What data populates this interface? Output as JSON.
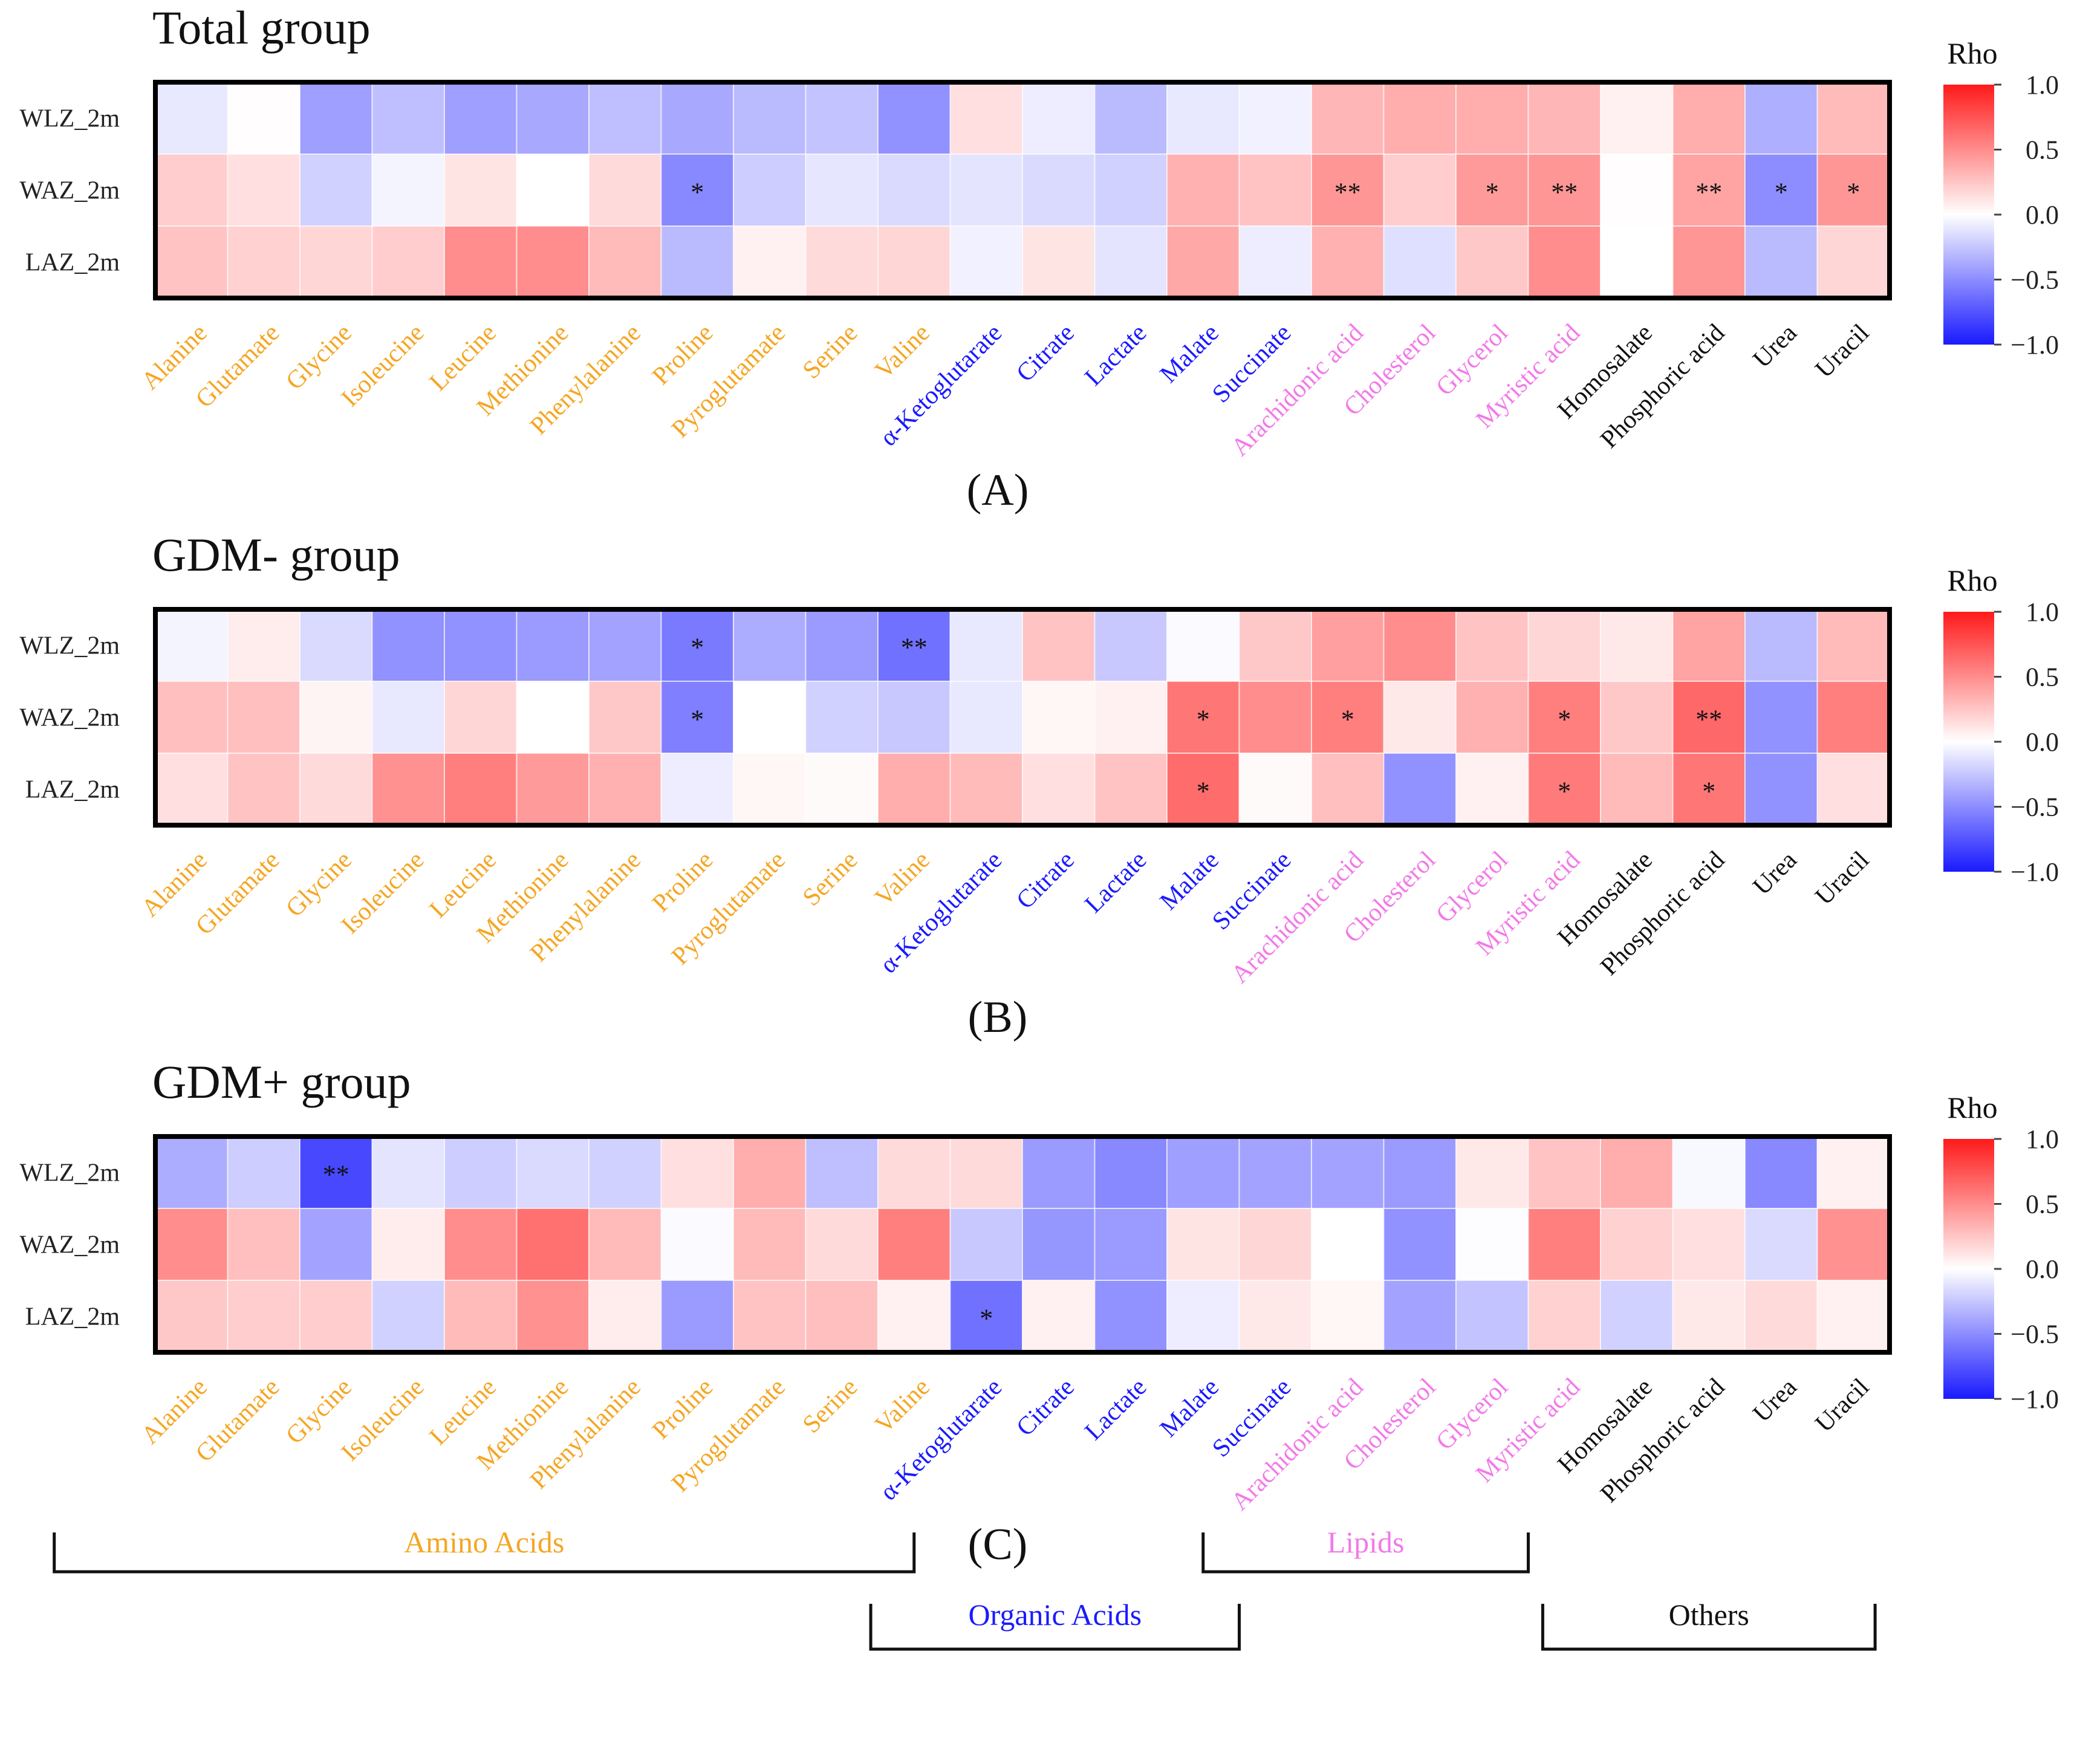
{
  "colors": {
    "amino": "#f5a623",
    "organic": "#1a1aff",
    "lipid": "#f27ae8",
    "other": "#111111",
    "pos": "#ff1a1a",
    "neg": "#1a1aff",
    "mid": "#ffffff"
  },
  "legend": {
    "title": "Rho",
    "ticks": [
      "1.0",
      "0.5",
      "0.0",
      "−0.5",
      "−1.0"
    ]
  },
  "chart_data": [
    {
      "type": "heatmap",
      "title": "Total group",
      "caption": "(A)",
      "rows": [
        "WLZ_2m",
        "WAZ_2m",
        "LAZ_2m"
      ],
      "columns": [
        "Alanine",
        "Glutamate",
        "Glycine",
        "Isoleucine",
        "Leucine",
        "Methionine",
        "Phenylalanine",
        "Proline",
        "Pyroglutamate",
        "Serine",
        "Valine",
        "α-Ketoglutarate",
        "Citrate",
        "Lactate",
        "Malate",
        "Succinate",
        "Arachidonic acid",
        "Cholesterol",
        "Glycerol",
        "Myristic acid",
        "Homosalate",
        "Phosphoric acid",
        "Urea",
        "Uracil"
      ],
      "column_class": [
        "amino",
        "amino",
        "amino",
        "amino",
        "amino",
        "amino",
        "amino",
        "amino",
        "amino",
        "amino",
        "amino",
        "organic",
        "organic",
        "organic",
        "organic",
        "organic",
        "lipid",
        "lipid",
        "lipid",
        "lipid",
        "other",
        "other",
        "other",
        "other"
      ],
      "values": [
        [
          -0.1,
          0.01,
          -0.42,
          -0.28,
          -0.42,
          -0.38,
          -0.28,
          -0.38,
          -0.3,
          -0.26,
          -0.48,
          0.14,
          -0.08,
          -0.3,
          -0.1,
          -0.06,
          0.32,
          0.36,
          0.36,
          0.32,
          0.06,
          0.36,
          -0.35,
          0.3
        ],
        [
          0.22,
          0.14,
          -0.2,
          -0.05,
          0.12,
          0.0,
          0.16,
          -0.52,
          -0.22,
          -0.11,
          -0.16,
          -0.12,
          -0.16,
          -0.2,
          0.34,
          0.26,
          0.46,
          0.22,
          0.44,
          0.46,
          0.01,
          0.4,
          -0.5,
          0.46
        ],
        [
          0.26,
          0.2,
          0.18,
          0.22,
          0.5,
          0.5,
          0.3,
          -0.3,
          0.06,
          0.16,
          0.18,
          -0.06,
          0.12,
          -0.12,
          0.38,
          -0.08,
          0.34,
          -0.14,
          0.24,
          0.5,
          0.0,
          0.46,
          -0.3,
          0.18
        ]
      ],
      "significance": [
        [
          "",
          "",
          "",
          "",
          "",
          "",
          "",
          "",
          "",
          "",
          "",
          "",
          "",
          "",
          "",
          "",
          "",
          "",
          "",
          "",
          "",
          "",
          "",
          ""
        ],
        [
          "",
          "",
          "",
          "",
          "",
          "",
          "",
          "*",
          "",
          "",
          "",
          "",
          "",
          "",
          "",
          "",
          "**",
          "",
          "*",
          "**",
          "",
          "**",
          "*",
          "*"
        ],
        [
          "",
          "",
          "",
          "",
          "",
          "",
          "",
          "",
          "",
          "",
          "",
          "",
          "",
          "",
          "",
          "",
          "",
          "",
          "",
          "",
          "",
          "",
          "",
          ""
        ]
      ],
      "value_range": [
        -1.0,
        1.0
      ]
    },
    {
      "type": "heatmap",
      "title": "GDM- group",
      "caption": "(B)",
      "rows": [
        "WLZ_2m",
        "WAZ_2m",
        "LAZ_2m"
      ],
      "columns": [
        "Alanine",
        "Glutamate",
        "Glycine",
        "Isoleucine",
        "Leucine",
        "Methionine",
        "Phenylalanine",
        "Proline",
        "Pyroglutamate",
        "Serine",
        "Valine",
        "α-Ketoglutarate",
        "Citrate",
        "Lactate",
        "Malate",
        "Succinate",
        "Arachidonic acid",
        "Cholesterol",
        "Glycerol",
        "Myristic acid",
        "Homosalate",
        "Phosphoric acid",
        "Urea",
        "Uracil"
      ],
      "column_class": [
        "amino",
        "amino",
        "amino",
        "amino",
        "amino",
        "amino",
        "amino",
        "amino",
        "amino",
        "amino",
        "amino",
        "organic",
        "organic",
        "organic",
        "organic",
        "organic",
        "lipid",
        "lipid",
        "lipid",
        "lipid",
        "other",
        "other",
        "other",
        "other"
      ],
      "values": [
        [
          -0.05,
          0.08,
          -0.16,
          -0.48,
          -0.48,
          -0.44,
          -0.4,
          -0.58,
          -0.36,
          -0.44,
          -0.62,
          -0.1,
          0.26,
          -0.24,
          -0.02,
          0.24,
          0.42,
          0.5,
          0.26,
          0.18,
          0.1,
          0.4,
          -0.3,
          0.3
        ],
        [
          0.28,
          0.28,
          0.05,
          -0.1,
          0.18,
          0.0,
          0.24,
          -0.56,
          0.0,
          -0.2,
          -0.24,
          -0.1,
          0.04,
          0.06,
          0.6,
          0.5,
          0.56,
          0.1,
          0.34,
          0.56,
          0.24,
          0.66,
          -0.48,
          0.56
        ],
        [
          0.14,
          0.26,
          0.16,
          0.48,
          0.56,
          0.44,
          0.34,
          -0.08,
          0.04,
          0.02,
          0.36,
          0.3,
          0.14,
          0.26,
          0.64,
          0.02,
          0.28,
          -0.48,
          0.06,
          0.58,
          0.3,
          0.6,
          -0.48,
          0.14
        ]
      ],
      "significance": [
        [
          "",
          "",
          "",
          "",
          "",
          "",
          "",
          "*",
          "",
          "",
          "**",
          "",
          "",
          "",
          "",
          "",
          "",
          "",
          "",
          "",
          "",
          "",
          "",
          ""
        ],
        [
          "",
          "",
          "",
          "",
          "",
          "",
          "",
          "*",
          "",
          "",
          "",
          "",
          "",
          "",
          "*",
          "",
          "*",
          "",
          "",
          "*",
          "",
          "**",
          "",
          ""
        ],
        [
          "",
          "",
          "",
          "",
          "",
          "",
          "",
          "",
          "",
          "",
          "",
          "",
          "",
          "",
          "*",
          "",
          "",
          "",
          "",
          "*",
          "",
          "*",
          "",
          ""
        ]
      ],
      "value_range": [
        -1.0,
        1.0
      ]
    },
    {
      "type": "heatmap",
      "title": "GDM+ group",
      "caption": "(C)",
      "rows": [
        "WLZ_2m",
        "WAZ_2m",
        "LAZ_2m"
      ],
      "columns": [
        "Alanine",
        "Glutamate",
        "Glycine",
        "Isoleucine",
        "Leucine",
        "Methionine",
        "Phenylalanine",
        "Proline",
        "Pyroglutamate",
        "Serine",
        "Valine",
        "α-Ketoglutarate",
        "Citrate",
        "Lactate",
        "Malate",
        "Succinate",
        "Arachidonic acid",
        "Cholesterol",
        "Glycerol",
        "Myristic acid",
        "Homosalate",
        "Phosphoric acid",
        "Urea",
        "Uracil"
      ],
      "column_class": [
        "amino",
        "amino",
        "amino",
        "amino",
        "amino",
        "amino",
        "amino",
        "amino",
        "amino",
        "amino",
        "amino",
        "organic",
        "organic",
        "organic",
        "organic",
        "organic",
        "lipid",
        "lipid",
        "lipid",
        "lipid",
        "other",
        "other",
        "other",
        "other"
      ],
      "values": [
        [
          -0.36,
          -0.22,
          -0.8,
          -0.12,
          -0.22,
          -0.16,
          -0.2,
          0.14,
          0.36,
          -0.28,
          0.16,
          0.16,
          -0.44,
          -0.52,
          -0.42,
          -0.4,
          -0.4,
          -0.44,
          0.1,
          0.26,
          0.36,
          -0.03,
          -0.52,
          0.06
        ],
        [
          0.5,
          0.28,
          -0.4,
          0.08,
          0.5,
          0.62,
          0.3,
          -0.02,
          0.3,
          0.16,
          0.56,
          -0.24,
          -0.46,
          -0.44,
          0.12,
          0.18,
          0.0,
          -0.48,
          -0.01,
          0.56,
          0.2,
          0.14,
          -0.16,
          0.48
        ],
        [
          0.24,
          0.22,
          0.22,
          -0.2,
          0.3,
          0.48,
          0.08,
          -0.44,
          0.26,
          0.28,
          0.06,
          -0.62,
          0.06,
          -0.48,
          -0.08,
          0.1,
          0.04,
          -0.4,
          -0.26,
          0.2,
          -0.2,
          0.1,
          0.16,
          0.06
        ]
      ],
      "significance": [
        [
          "",
          "",
          "**",
          "",
          "",
          "",
          "",
          "",
          "",
          "",
          "",
          "",
          "",
          "",
          "",
          "",
          "",
          "",
          "",
          "",
          "",
          "",
          "",
          ""
        ],
        [
          "",
          "",
          "",
          "",
          "",
          "",
          "",
          "",
          "",
          "",
          "",
          "",
          "",
          "",
          "",
          "",
          "",
          "",
          "",
          "",
          "",
          "",
          "",
          ""
        ],
        [
          "",
          "",
          "",
          "",
          "",
          "",
          "",
          "",
          "",
          "",
          "",
          "*",
          "",
          "",
          "",
          "",
          "",
          "",
          "",
          "",
          "",
          "",
          "",
          ""
        ]
      ],
      "value_range": [
        -1.0,
        1.0
      ]
    }
  ],
  "groups": [
    {
      "label": "Amino Acids",
      "class": "amino"
    },
    {
      "label": "Organic Acids",
      "class": "organic"
    },
    {
      "label": "Lipids",
      "class": "lipid"
    },
    {
      "label": "Others",
      "class": "other"
    }
  ]
}
